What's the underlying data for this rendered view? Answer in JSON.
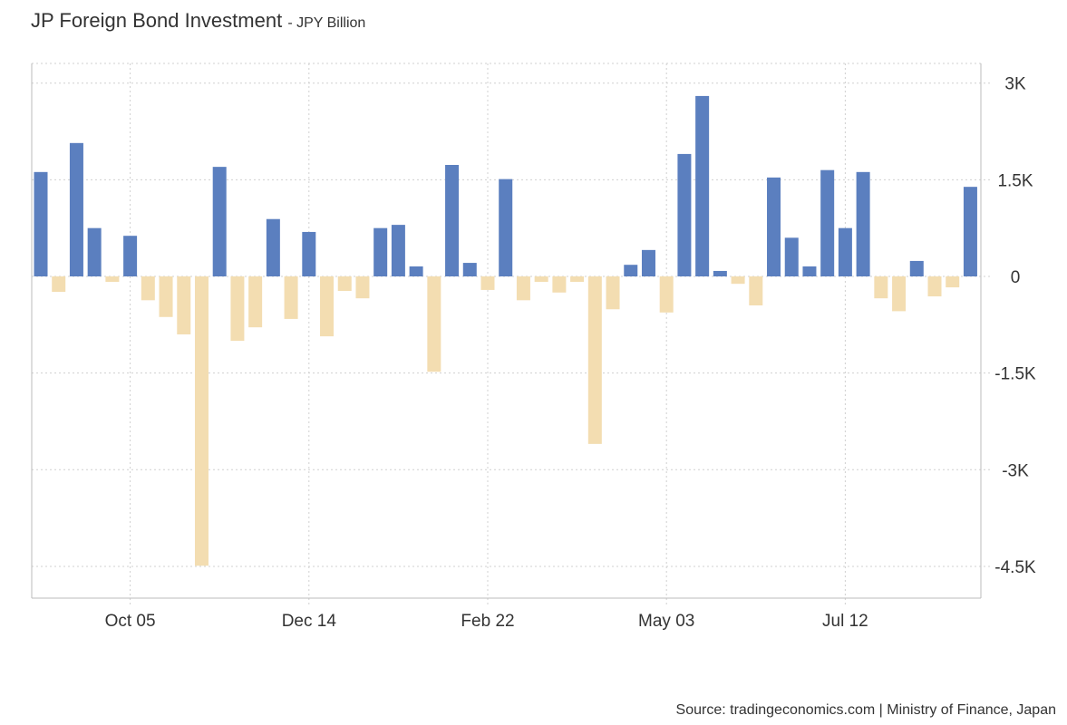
{
  "title": "JP Foreign Bond Investment",
  "unit": "JPY Billion",
  "source": "Source: tradingeconomics.com | Ministry of Finance, Japan",
  "colors": {
    "positive": "#5b7fbf",
    "negative": "#f3ddb1"
  },
  "chart_data": {
    "type": "bar",
    "title": "JP Foreign Bond Investment",
    "ylabel": "JPY Billion",
    "xlabel": "",
    "ylim": [
      -5000,
      3300
    ],
    "yticks": [
      3000,
      1500,
      0,
      -1500,
      -3000,
      -4500
    ],
    "ytick_labels": [
      "3K",
      "1.5K",
      "0",
      "-1.5K",
      "-3K",
      "-4.5K"
    ],
    "xtick_labels": [
      "Oct 05",
      "Dec 14",
      "Feb 22",
      "May 03",
      "Jul 12"
    ],
    "xtick_bar_index": [
      5,
      15,
      25,
      35,
      45
    ],
    "grid": true,
    "values": [
      1620,
      -240,
      2070,
      750,
      -85,
      630,
      -370,
      -630,
      -900,
      -4490,
      1700,
      -1000,
      -790,
      890,
      -660,
      690,
      -930,
      -225,
      -340,
      750,
      800,
      155,
      -1480,
      1730,
      210,
      -210,
      1510,
      -370,
      -85,
      -250,
      -85,
      -2600,
      -510,
      180,
      410,
      -560,
      1900,
      2800,
      85,
      -115,
      -450,
      1535,
      600,
      155,
      1650,
      750,
      1620,
      -340,
      -540,
      240,
      -310,
      -170,
      1390
    ]
  }
}
